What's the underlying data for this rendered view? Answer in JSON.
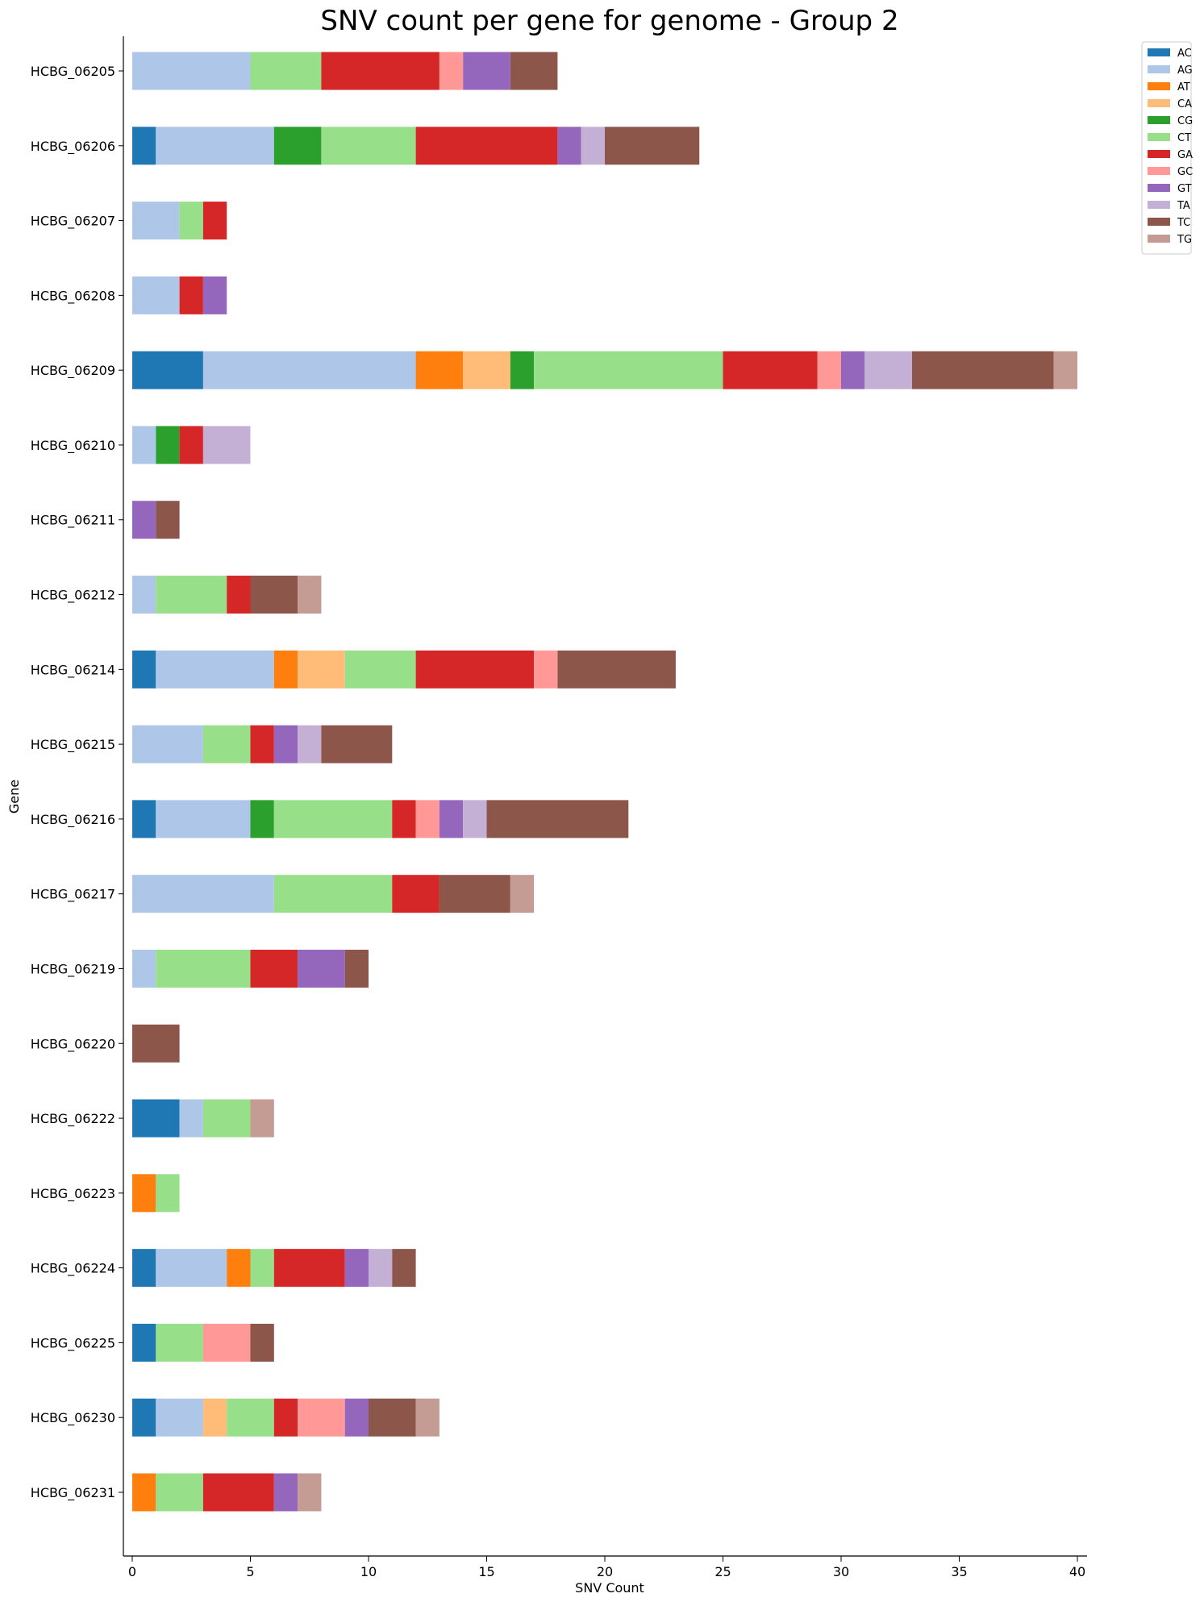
{
  "chart_data": {
    "type": "bar",
    "orientation": "horizontal",
    "stacked": true,
    "title": "SNV count per gene for genome - Group 2",
    "xlabel": "SNV Count",
    "ylabel": "Gene",
    "xlim": [
      0,
      40
    ],
    "xticks": [
      0,
      5,
      10,
      15,
      20,
      25,
      30,
      35,
      40
    ],
    "grid": false,
    "legend_position": "top-right",
    "categories": [
      "HCBG_06205",
      "HCBG_06206",
      "HCBG_06207",
      "HCBG_06208",
      "HCBG_06209",
      "HCBG_06210",
      "HCBG_06211",
      "HCBG_06212",
      "HCBG_06214",
      "HCBG_06215",
      "HCBG_06216",
      "HCBG_06217",
      "HCBG_06219",
      "HCBG_06220",
      "HCBG_06222",
      "HCBG_06223",
      "HCBG_06224",
      "HCBG_06225",
      "HCBG_06230",
      "HCBG_06231"
    ],
    "series": [
      {
        "name": "AC",
        "color": "#1f77b4",
        "values": [
          0,
          1,
          0,
          0,
          3,
          0,
          0,
          0,
          1,
          0,
          1,
          0,
          0,
          0,
          2,
          0,
          1,
          1,
          1,
          0
        ]
      },
      {
        "name": "AG",
        "color": "#aec7e8",
        "values": [
          5,
          5,
          2,
          2,
          9,
          1,
          0,
          1,
          5,
          3,
          4,
          6,
          1,
          0,
          1,
          0,
          3,
          0,
          2,
          0
        ]
      },
      {
        "name": "AT",
        "color": "#ff7f0e",
        "values": [
          0,
          0,
          0,
          0,
          2,
          0,
          0,
          0,
          1,
          0,
          0,
          0,
          0,
          0,
          0,
          1,
          1,
          0,
          0,
          1
        ]
      },
      {
        "name": "CA",
        "color": "#ffbb78",
        "values": [
          0,
          0,
          0,
          0,
          2,
          0,
          0,
          0,
          2,
          0,
          0,
          0,
          0,
          0,
          0,
          0,
          0,
          0,
          1,
          0
        ]
      },
      {
        "name": "CG",
        "color": "#2ca02c",
        "values": [
          0,
          2,
          0,
          0,
          1,
          1,
          0,
          0,
          0,
          0,
          1,
          0,
          0,
          0,
          0,
          0,
          0,
          0,
          0,
          0
        ]
      },
      {
        "name": "CT",
        "color": "#98df8a",
        "values": [
          3,
          4,
          1,
          0,
          8,
          0,
          0,
          3,
          3,
          2,
          5,
          5,
          4,
          0,
          2,
          1,
          1,
          2,
          2,
          2
        ]
      },
      {
        "name": "GA",
        "color": "#d62728",
        "values": [
          5,
          6,
          1,
          1,
          4,
          1,
          0,
          1,
          5,
          1,
          1,
          2,
          2,
          0,
          0,
          0,
          3,
          0,
          1,
          3
        ]
      },
      {
        "name": "GC",
        "color": "#ff9896",
        "values": [
          1,
          0,
          0,
          0,
          1,
          0,
          0,
          0,
          1,
          0,
          1,
          0,
          0,
          0,
          0,
          0,
          0,
          2,
          2,
          0
        ]
      },
      {
        "name": "GT",
        "color": "#9467bd",
        "values": [
          2,
          1,
          0,
          1,
          1,
          0,
          1,
          0,
          0,
          1,
          1,
          0,
          2,
          0,
          0,
          0,
          1,
          0,
          1,
          1
        ]
      },
      {
        "name": "TA",
        "color": "#c5b0d5",
        "values": [
          0,
          1,
          0,
          0,
          2,
          2,
          0,
          0,
          0,
          1,
          1,
          0,
          0,
          0,
          0,
          0,
          1,
          0,
          0,
          0
        ]
      },
      {
        "name": "TC",
        "color": "#8c564b",
        "values": [
          2,
          4,
          0,
          0,
          6,
          0,
          1,
          2,
          5,
          3,
          6,
          3,
          1,
          2,
          0,
          0,
          1,
          1,
          2,
          0
        ]
      },
      {
        "name": "TG",
        "color": "#c49c94",
        "values": [
          0,
          0,
          0,
          0,
          1,
          0,
          0,
          1,
          0,
          0,
          0,
          1,
          0,
          0,
          1,
          0,
          0,
          0,
          1,
          1
        ]
      }
    ]
  }
}
